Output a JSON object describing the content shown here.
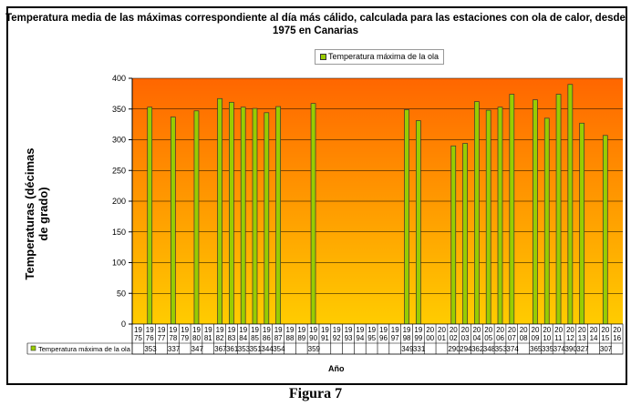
{
  "chart_data": {
    "type": "bar",
    "title": "Temperatura media de las máximas correspondiente al día más cálido, calculada para las estaciones con ola de calor, desde 1975 en Canarias",
    "xlabel": "Año",
    "ylabel": "Temperaturas (décimas de grado)",
    "ylim": [
      0,
      400
    ],
    "yticks": [
      0,
      50,
      100,
      150,
      200,
      250,
      300,
      350,
      400
    ],
    "grid": true,
    "legend_placement": "top",
    "background_gradient": [
      "#FF6600",
      "#FFCC00"
    ],
    "bar_color": "#99CC00",
    "categories": [
      "1975",
      "1976",
      "1977",
      "1978",
      "1979",
      "1980",
      "1981",
      "1982",
      "1983",
      "1984",
      "1985",
      "1986",
      "1987",
      "1988",
      "1989",
      "1990",
      "1991",
      "1992",
      "1993",
      "1994",
      "1995",
      "1996",
      "1997",
      "1998",
      "1999",
      "2000",
      "2001",
      "2002",
      "2003",
      "2004",
      "2005",
      "2006",
      "2007",
      "2008",
      "2009",
      "2010",
      "2011",
      "2012",
      "2013",
      "2014",
      "2015",
      "2016"
    ],
    "series": [
      {
        "name": "Temperatura máxima de la ola",
        "values": [
          null,
          353,
          null,
          337,
          null,
          347,
          null,
          367,
          361,
          353,
          351,
          344,
          354,
          null,
          null,
          359,
          null,
          null,
          null,
          null,
          null,
          null,
          null,
          349,
          331,
          null,
          null,
          290,
          294,
          362,
          348,
          353,
          374,
          null,
          365,
          335,
          374,
          390,
          327,
          null,
          307,
          null
        ]
      }
    ]
  },
  "caption": "Figura 7"
}
